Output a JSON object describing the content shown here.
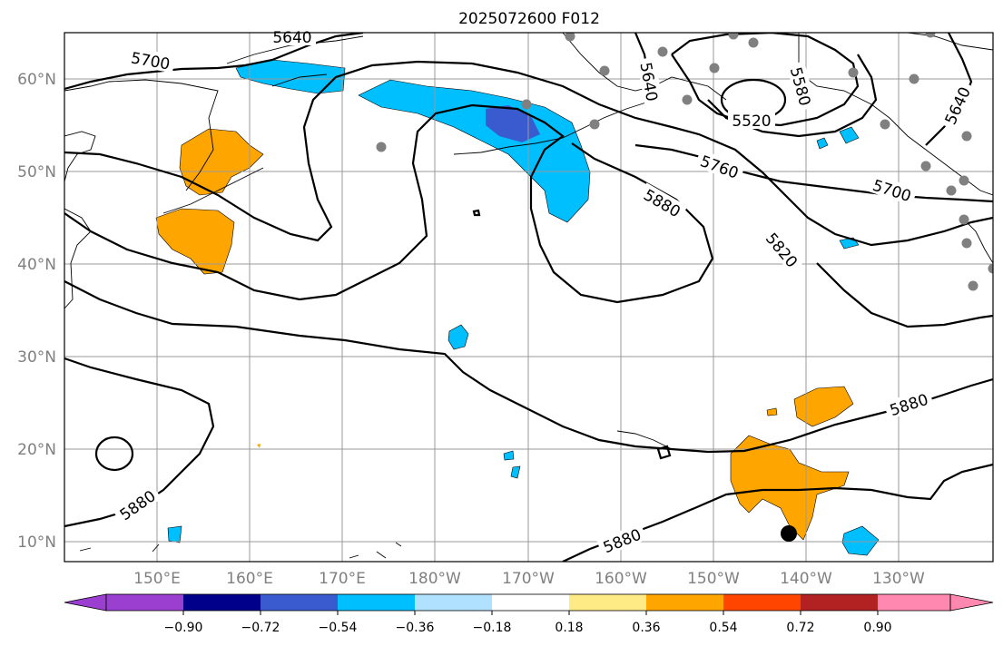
{
  "title": "2025072600 F012",
  "lat_labels": [
    "60°N",
    "50°N",
    "40°N",
    "30°N",
    "20°N",
    "10°N"
  ],
  "lon_labels": [
    "150°E",
    "160°E",
    "170°E",
    "180°W",
    "170°W",
    "160°W",
    "150°W",
    "140°W",
    "130°W"
  ],
  "contour_labels": [
    "5640",
    "5700",
    "5640",
    "5580",
    "5520",
    "5640",
    "5760",
    "5700",
    "5880",
    "5820",
    "5880",
    "5880",
    "5880"
  ],
  "colorbar": {
    "ticks": [
      "−0.90",
      "−0.72",
      "−0.54",
      "−0.36",
      "−0.18",
      "0.18",
      "0.36",
      "0.54",
      "0.72",
      "0.90"
    ],
    "colors": [
      "#9a3fd0",
      "#00008b",
      "#3a5bd0",
      "#00bfff",
      "#b0e2ff",
      "#ffffff",
      "#ffeb85",
      "#ffa500",
      "#ff4500",
      "#b22222",
      "#ff88b0",
      "#ff88b0"
    ]
  },
  "colors": {
    "negative_shading": "#00bfff",
    "negative_core": "#3a5bd0",
    "positive_shading": "#ffa500",
    "station_marker": "#808080",
    "center_marker": "#000000"
  }
}
